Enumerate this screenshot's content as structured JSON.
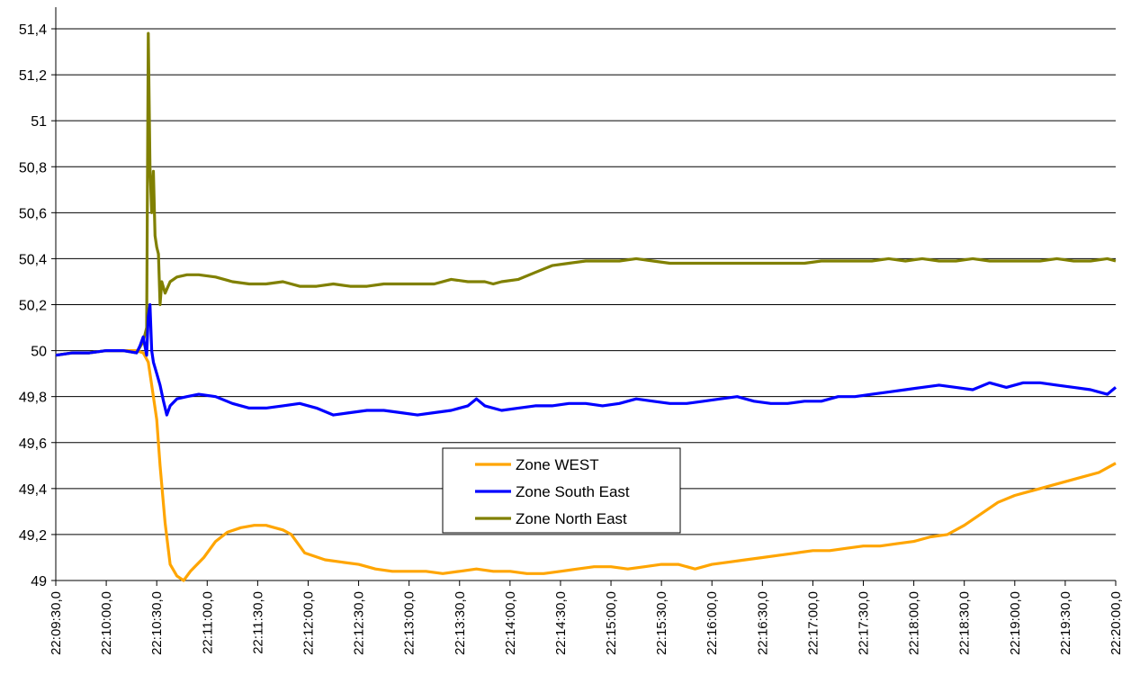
{
  "chart_data": {
    "type": "line",
    "title": "",
    "xlabel": "",
    "ylabel": "",
    "ylim": [
      49,
      51.4
    ],
    "y_ticks": [
      49,
      49.2,
      49.4,
      49.6,
      49.8,
      50,
      50.2,
      50.4,
      50.6,
      50.8,
      51,
      51.2,
      51.4
    ],
    "y_tick_labels": [
      "49",
      "49,2",
      "49,4",
      "49,6",
      "49,8",
      "50",
      "50,2",
      "50,4",
      "50,6",
      "50,8",
      "51",
      "51,2",
      "51,4"
    ],
    "x_tick_labels": [
      "22:09:30,0",
      "22:10:00,0",
      "22:10:30,0",
      "22:11:00,0",
      "22:11:30,0",
      "22:12:00,0",
      "22:12:30,0",
      "22:13:00,0",
      "22:13:30,0",
      "22:14:00,0",
      "22:14:30,0",
      "22:15:00,0",
      "22:15:30,0",
      "22:16:00,0",
      "22:16:30,0",
      "22:17:00,0",
      "22:17:30,0",
      "22:18:00,0",
      "22:18:30,0",
      "22:19:00,0",
      "22:19:30,0",
      "22:20:00,0"
    ],
    "x_unit": "seconds after 22:09:30",
    "xlim": [
      0,
      630
    ],
    "grid": "horizontal",
    "legend_position": "center-bottom",
    "series": [
      {
        "name": "Zone WEST",
        "color": "#FFA500",
        "x": [
          0,
          10,
          20,
          30,
          40,
          48,
          52,
          55,
          57,
          60,
          62,
          65,
          68,
          72,
          76,
          80,
          88,
          95,
          102,
          110,
          118,
          125,
          130,
          135,
          140,
          148,
          160,
          170,
          180,
          190,
          200,
          210,
          220,
          230,
          240,
          250,
          260,
          270,
          280,
          290,
          300,
          310,
          320,
          330,
          340,
          350,
          360,
          370,
          380,
          390,
          400,
          410,
          420,
          430,
          440,
          450,
          460,
          470,
          480,
          490,
          500,
          510,
          520,
          530,
          540,
          550,
          560,
          570,
          580,
          590,
          600,
          610,
          620,
          630
        ],
        "y": [
          49.98,
          49.99,
          49.99,
          50.0,
          50.0,
          50.0,
          49.99,
          49.95,
          49.85,
          49.7,
          49.5,
          49.25,
          49.07,
          49.02,
          49.0,
          49.04,
          49.1,
          49.17,
          49.21,
          49.23,
          49.24,
          49.24,
          49.23,
          49.22,
          49.2,
          49.12,
          49.09,
          49.08,
          49.07,
          49.05,
          49.04,
          49.04,
          49.04,
          49.03,
          49.04,
          49.05,
          49.04,
          49.04,
          49.03,
          49.03,
          49.04,
          49.05,
          49.06,
          49.06,
          49.05,
          49.06,
          49.07,
          49.07,
          49.05,
          49.07,
          49.08,
          49.09,
          49.1,
          49.11,
          49.12,
          49.13,
          49.13,
          49.14,
          49.15,
          49.15,
          49.16,
          49.17,
          49.19,
          49.2,
          49.24,
          49.29,
          49.34,
          49.37,
          49.39,
          49.41,
          49.43,
          49.45,
          49.47,
          49.51
        ]
      },
      {
        "name": "Zone South East",
        "color": "#0000FF",
        "x": [
          0,
          10,
          20,
          30,
          40,
          48,
          50,
          52,
          54,
          55,
          56,
          57,
          58,
          60,
          62,
          64,
          66,
          68,
          72,
          78,
          85,
          95,
          105,
          115,
          125,
          135,
          145,
          155,
          165,
          175,
          185,
          195,
          205,
          215,
          225,
          235,
          245,
          250,
          255,
          265,
          275,
          285,
          295,
          305,
          315,
          325,
          335,
          345,
          355,
          365,
          375,
          385,
          395,
          405,
          415,
          425,
          435,
          445,
          455,
          465,
          475,
          485,
          495,
          505,
          515,
          525,
          535,
          545,
          555,
          565,
          575,
          585,
          595,
          605,
          615,
          620,
          625,
          630
        ],
        "y": [
          49.98,
          49.99,
          49.99,
          50.0,
          50.0,
          49.99,
          50.02,
          50.06,
          49.98,
          50.15,
          50.2,
          50.0,
          49.95,
          49.9,
          49.85,
          49.78,
          49.72,
          49.76,
          49.79,
          49.8,
          49.81,
          49.8,
          49.77,
          49.75,
          49.75,
          49.76,
          49.77,
          49.75,
          49.72,
          49.73,
          49.74,
          49.74,
          49.73,
          49.72,
          49.73,
          49.74,
          49.76,
          49.79,
          49.76,
          49.74,
          49.75,
          49.76,
          49.76,
          49.77,
          49.77,
          49.76,
          49.77,
          49.79,
          49.78,
          49.77,
          49.77,
          49.78,
          49.79,
          49.8,
          49.78,
          49.77,
          49.77,
          49.78,
          49.78,
          49.8,
          49.8,
          49.81,
          49.82,
          49.83,
          49.84,
          49.85,
          49.84,
          49.83,
          49.86,
          49.84,
          49.86,
          49.86,
          49.85,
          49.84,
          49.83,
          49.82,
          49.81,
          49.84
        ]
      },
      {
        "name": "Zone North East",
        "color": "#808000",
        "x": [
          0,
          10,
          20,
          30,
          40,
          48,
          52,
          54,
          55,
          56,
          57,
          58,
          59,
          60,
          61,
          62,
          63,
          65,
          68,
          72,
          78,
          85,
          95,
          105,
          115,
          125,
          135,
          145,
          155,
          165,
          175,
          185,
          195,
          205,
          215,
          225,
          235,
          245,
          255,
          260,
          265,
          275,
          285,
          295,
          305,
          315,
          325,
          335,
          345,
          355,
          365,
          375,
          385,
          395,
          405,
          415,
          425,
          435,
          445,
          455,
          465,
          475,
          485,
          495,
          505,
          515,
          525,
          535,
          545,
          555,
          565,
          575,
          585,
          595,
          605,
          615,
          625,
          630
        ],
        "y": [
          49.98,
          49.99,
          49.99,
          50.0,
          50.0,
          49.99,
          50.04,
          50.1,
          51.38,
          50.8,
          50.6,
          50.78,
          50.5,
          50.45,
          50.42,
          50.2,
          50.3,
          50.25,
          50.3,
          50.32,
          50.33,
          50.33,
          50.32,
          50.3,
          50.29,
          50.29,
          50.3,
          50.28,
          50.28,
          50.29,
          50.28,
          50.28,
          50.29,
          50.29,
          50.29,
          50.29,
          50.31,
          50.3,
          50.3,
          50.29,
          50.3,
          50.31,
          50.34,
          50.37,
          50.38,
          50.39,
          50.39,
          50.39,
          50.4,
          50.39,
          50.38,
          50.38,
          50.38,
          50.38,
          50.38,
          50.38,
          50.38,
          50.38,
          50.38,
          50.39,
          50.39,
          50.39,
          50.39,
          50.4,
          50.39,
          50.4,
          50.39,
          50.39,
          50.4,
          50.39,
          50.39,
          50.39,
          50.39,
          50.4,
          50.39,
          50.39,
          50.4,
          50.39
        ]
      }
    ]
  }
}
